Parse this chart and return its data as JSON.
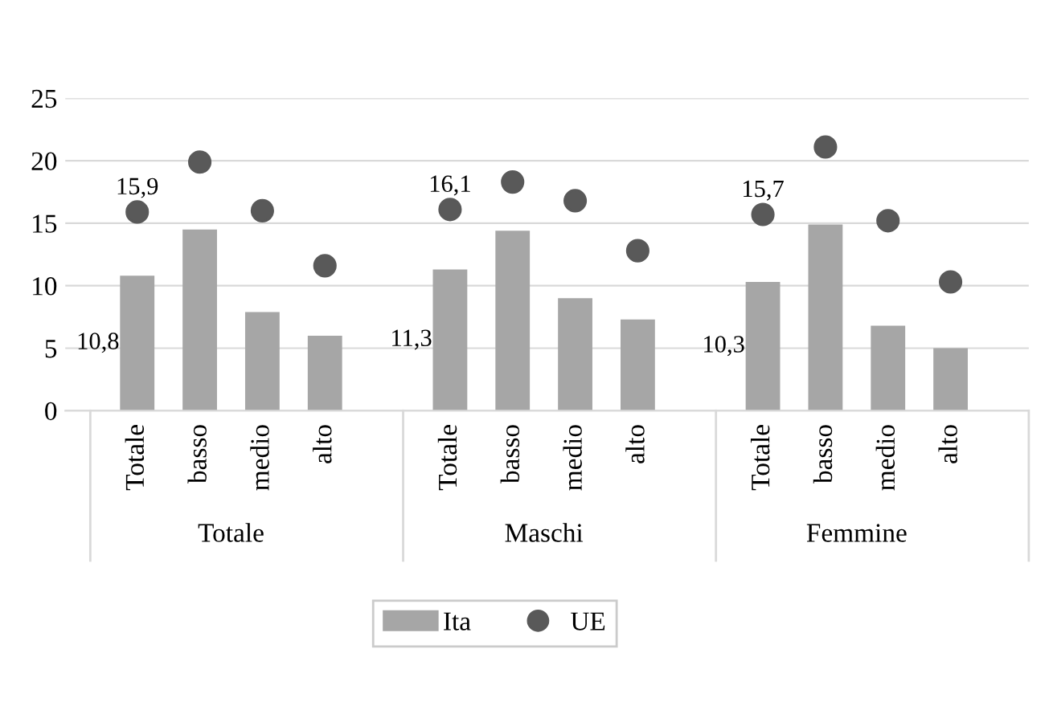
{
  "chart_data": {
    "type": "bar",
    "categories": [
      "Totale",
      "basso",
      "medio",
      "alto",
      "Totale",
      "basso",
      "medio",
      "alto",
      "Totale",
      "basso",
      "medio",
      "alto"
    ],
    "series": [
      {
        "name": "Ita",
        "color": "#a6a6a6",
        "values": [
          10.8,
          14.5,
          7.9,
          6.0,
          11.3,
          14.4,
          9.0,
          7.3,
          10.3,
          14.9,
          6.8,
          5.0
        ],
        "value_labels": [
          "10,8",
          null,
          null,
          null,
          "11,3",
          null,
          null,
          null,
          "10,3",
          null,
          null,
          null
        ]
      },
      {
        "name": "UE",
        "type": "scatter",
        "color": "#595959",
        "values": [
          15.9,
          19.9,
          16.0,
          11.6,
          16.1,
          18.3,
          16.8,
          12.8,
          15.7,
          21.1,
          15.2,
          10.3
        ],
        "value_labels": [
          "15,9",
          null,
          null,
          null,
          "16,1",
          null,
          null,
          null,
          "15,7",
          null,
          null,
          null
        ]
      }
    ],
    "annotations": [
      "Totale",
      "Maschi",
      "Femmine"
    ],
    "ylim": [
      0,
      25
    ],
    "yticks": [
      0,
      5,
      10,
      15,
      20,
      25
    ],
    "grid": "y",
    "legend": "bottom",
    "marker": "circle"
  }
}
